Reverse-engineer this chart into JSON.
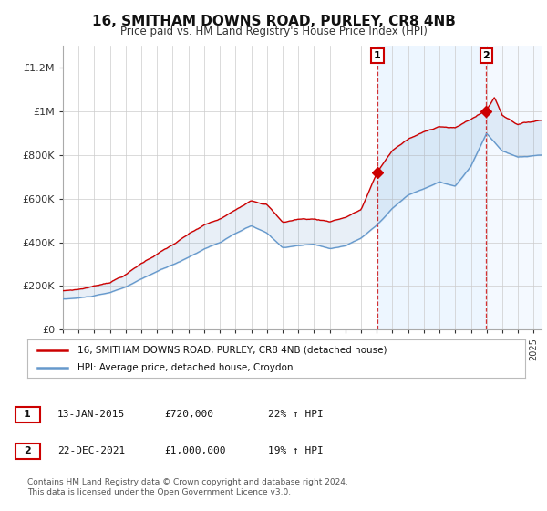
{
  "title": "16, SMITHAM DOWNS ROAD, PURLEY, CR8 4NB",
  "subtitle": "Price paid vs. HM Land Registry's House Price Index (HPI)",
  "ylabel_ticks": [
    "£0",
    "£200K",
    "£400K",
    "£600K",
    "£800K",
    "£1M",
    "£1.2M"
  ],
  "ytick_values": [
    0,
    200000,
    400000,
    600000,
    800000,
    1000000,
    1200000
  ],
  "ylim": [
    0,
    1300000
  ],
  "xlim_start": 1995.0,
  "xlim_end": 2025.5,
  "hpi_color": "#6699cc",
  "hpi_fill_color": "#ddeeff",
  "price_color": "#cc0000",
  "shade_color": "#ddeeff",
  "sale1_date": 2015.04,
  "sale1_price": 720000,
  "sale2_date": 2021.97,
  "sale2_price": 1000000,
  "legend_line1": "16, SMITHAM DOWNS ROAD, PURLEY, CR8 4NB (detached house)",
  "legend_line2": "HPI: Average price, detached house, Croydon",
  "table_row1": [
    "1",
    "13-JAN-2015",
    "£720,000",
    "22% ↑ HPI"
  ],
  "table_row2": [
    "2",
    "22-DEC-2021",
    "£1,000,000",
    "19% ↑ HPI"
  ],
  "footnote1": "Contains HM Land Registry data © Crown copyright and database right 2024.",
  "footnote2": "This data is licensed under the Open Government Licence v3.0.",
  "background_color": "#ffffff",
  "plot_bg_color": "#ffffff",
  "grid_color": "#cccccc"
}
